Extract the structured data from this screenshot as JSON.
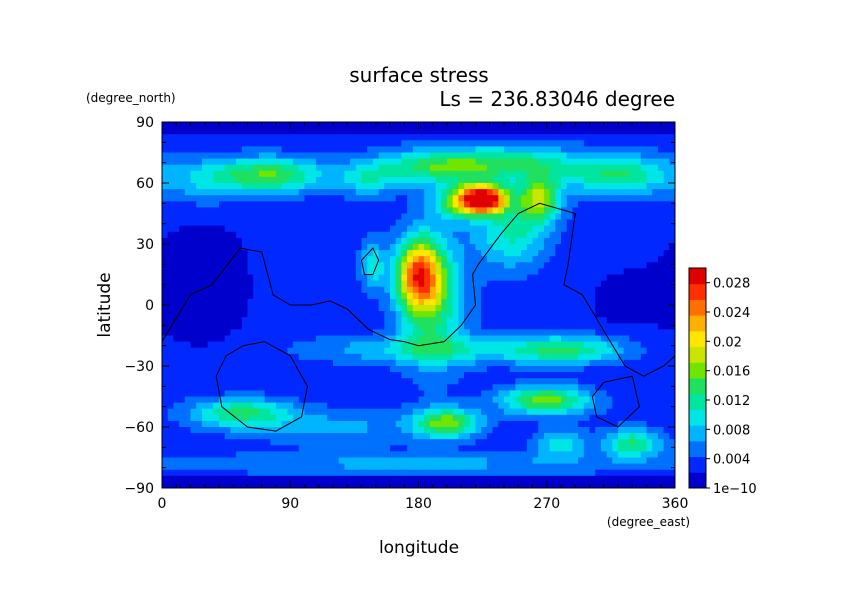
{
  "chart_data": {
    "type": "heatmap",
    "title": "surface stress",
    "subtitle": "Ls = 236.83046 degree",
    "xlabel": "longitude",
    "ylabel": "latitude",
    "x_units": "(degree_east)",
    "y_units": "(degree_north)",
    "xlim": [
      0,
      360
    ],
    "ylim": [
      -90,
      90
    ],
    "x_ticks": [
      "0",
      "90",
      "180",
      "270",
      "360"
    ],
    "y_ticks": [
      "90",
      "60",
      "30",
      "0",
      "−30",
      "−60",
      "−90"
    ],
    "x_tick_values": [
      0,
      90,
      180,
      270,
      360
    ],
    "y_tick_values": [
      90,
      60,
      30,
      0,
      -30,
      -60,
      -90
    ],
    "colorbar": {
      "min": 1e-10,
      "max": 0.03,
      "labels": [
        "1e−10",
        "0.004",
        "0.008",
        "0.012",
        "0.016",
        "0.02",
        "0.024",
        "0.028"
      ],
      "label_values": [
        0,
        0.004,
        0.008,
        0.012,
        0.016,
        0.02,
        0.024,
        0.028
      ],
      "colors": [
        "#0000cd",
        "#0028ff",
        "#0070ff",
        "#00b4ff",
        "#00e6e6",
        "#00e6a0",
        "#20e060",
        "#70e600",
        "#c8e600",
        "#ffe600",
        "#ffb000",
        "#ff7000",
        "#ff3000",
        "#e00000"
      ]
    },
    "background_value": 0.003,
    "features": [
      {
        "lon": 75,
        "lat": 64,
        "slon": 28,
        "slat": 6,
        "amp": 0.012
      },
      {
        "lon": 30,
        "lat": 60,
        "slon": 20,
        "slat": 8,
        "amp": 0.004
      },
      {
        "lon": 145,
        "lat": 62,
        "slon": 15,
        "slat": 6,
        "amp": 0.006
      },
      {
        "lon": 195,
        "lat": 68,
        "slon": 30,
        "slat": 6,
        "amp": 0.011
      },
      {
        "lon": 250,
        "lat": 70,
        "slon": 30,
        "slat": 6,
        "amp": 0.008
      },
      {
        "lon": 320,
        "lat": 64,
        "slon": 28,
        "slat": 7,
        "amp": 0.01
      },
      {
        "lon": 225,
        "lat": 52,
        "slon": 12,
        "slat": 5,
        "amp": 0.03
      },
      {
        "lon": 205,
        "lat": 50,
        "slon": 12,
        "slat": 6,
        "amp": 0.008
      },
      {
        "lon": 265,
        "lat": 52,
        "slon": 10,
        "slat": 8,
        "amp": 0.014
      },
      {
        "lon": 245,
        "lat": 35,
        "slon": 18,
        "slat": 12,
        "amp": 0.008
      },
      {
        "lon": 180,
        "lat": 15,
        "slon": 11,
        "slat": 12,
        "amp": 0.019
      },
      {
        "lon": 190,
        "lat": 2,
        "slon": 16,
        "slat": 22,
        "amp": 0.01
      },
      {
        "lon": 148,
        "lat": 20,
        "slon": 6,
        "slat": 8,
        "amp": 0.007
      },
      {
        "lon": 190,
        "lat": -22,
        "slon": 60,
        "slat": 5,
        "amp": 0.006
      },
      {
        "lon": 285,
        "lat": -22,
        "slon": 30,
        "slat": 5,
        "amp": 0.009
      },
      {
        "lon": 55,
        "lat": -53,
        "slon": 25,
        "slat": 5,
        "amp": 0.01
      },
      {
        "lon": 200,
        "lat": -58,
        "slon": 16,
        "slat": 5,
        "amp": 0.013
      },
      {
        "lon": 270,
        "lat": -47,
        "slon": 22,
        "slat": 5,
        "amp": 0.013
      },
      {
        "lon": 330,
        "lat": -68,
        "slon": 14,
        "slat": 5,
        "amp": 0.01
      },
      {
        "lon": 280,
        "lat": -68,
        "slon": 12,
        "slat": 5,
        "amp": 0.007
      },
      {
        "lon": 120,
        "lat": -60,
        "slon": 45,
        "slat": 6,
        "amp": 0.004
      },
      {
        "lon": 180,
        "lat": -78,
        "slon": 120,
        "slat": 4,
        "amp": 0.004
      },
      {
        "lon": 30,
        "lat": 10,
        "slon": 25,
        "slat": 25,
        "amp": -0.002
      },
      {
        "lon": 320,
        "lat": 0,
        "slon": 30,
        "slat": 25,
        "amp": -0.001
      }
    ],
    "contours": [
      {
        "closed": false,
        "points": [
          [
            0,
            -18
          ],
          [
            20,
            5
          ],
          [
            35,
            10
          ],
          [
            55,
            28
          ],
          [
            70,
            26
          ],
          [
            78,
            5
          ],
          [
            90,
            0
          ],
          [
            105,
            0
          ],
          [
            118,
            2
          ],
          [
            130,
            -2
          ],
          [
            145,
            -12
          ],
          [
            160,
            -17
          ],
          [
            170,
            -18
          ],
          [
            180,
            -20
          ],
          [
            198,
            -18
          ],
          [
            210,
            -10
          ],
          [
            220,
            0
          ],
          [
            218,
            15
          ],
          [
            222,
            20
          ],
          [
            238,
            35
          ],
          [
            250,
            45
          ],
          [
            265,
            50
          ],
          [
            290,
            45
          ],
          [
            285,
            20
          ],
          [
            282,
            10
          ],
          [
            295,
            5
          ],
          [
            312,
            -15
          ],
          [
            325,
            -30
          ],
          [
            338,
            -35
          ],
          [
            352,
            -30
          ],
          [
            360,
            -25
          ]
        ]
      },
      {
        "closed": true,
        "points": [
          [
            57,
            -20
          ],
          [
            72,
            -18
          ],
          [
            90,
            -25
          ],
          [
            102,
            -40
          ],
          [
            98,
            -55
          ],
          [
            80,
            -62
          ],
          [
            60,
            -60
          ],
          [
            42,
            -50
          ],
          [
            38,
            -35
          ],
          [
            45,
            -25
          ]
        ]
      },
      {
        "closed": true,
        "points": [
          [
            140,
            22
          ],
          [
            148,
            28
          ],
          [
            152,
            22
          ],
          [
            148,
            15
          ],
          [
            142,
            15
          ]
        ]
      },
      {
        "closed": true,
        "points": [
          [
            310,
            -38
          ],
          [
            330,
            -35
          ],
          [
            335,
            -50
          ],
          [
            320,
            -60
          ],
          [
            305,
            -55
          ],
          [
            302,
            -45
          ]
        ]
      }
    ]
  }
}
